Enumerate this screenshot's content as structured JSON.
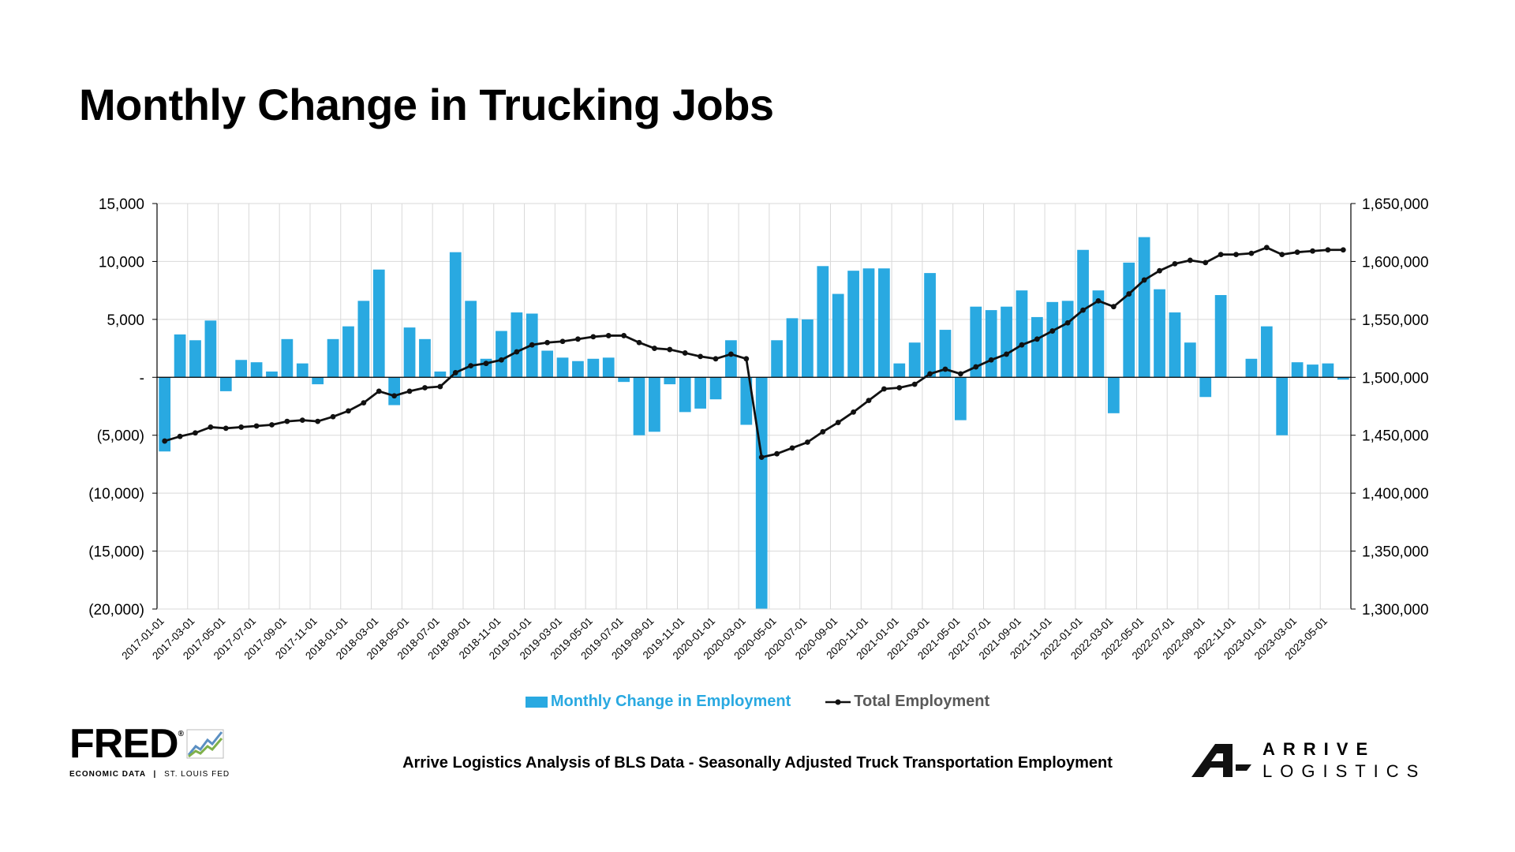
{
  "title": "Monthly Change in Trucking Jobs",
  "caption": "Arrive Logistics Analysis of BLS Data - Seasonally Adjusted Truck Transportation Employment",
  "colors": {
    "bar": "#29a9e1",
    "line": "#111111",
    "grid": "#d9d9d9",
    "axis": "#000000"
  },
  "logos": {
    "fred": {
      "word": "FRED",
      "mark": "®",
      "sub_left": "ECONOMIC DATA",
      "sub_sep": "|",
      "sub_right": "ST. LOUIS FED",
      "icon": "line-graph-icon"
    },
    "arrive": {
      "line1": "ARRIVE",
      "line2": "LOGISTICS",
      "icon": "arrive-a-logo-icon"
    }
  },
  "chart_data": {
    "type": "bar",
    "categories": [
      "2017-01-01",
      "2017-02-01",
      "2017-03-01",
      "2017-04-01",
      "2017-05-01",
      "2017-06-01",
      "2017-07-01",
      "2017-08-01",
      "2017-09-01",
      "2017-10-01",
      "2017-11-01",
      "2017-12-01",
      "2018-01-01",
      "2018-02-01",
      "2018-03-01",
      "2018-04-01",
      "2018-05-01",
      "2018-06-01",
      "2018-07-01",
      "2018-08-01",
      "2018-09-01",
      "2018-10-01",
      "2018-11-01",
      "2018-12-01",
      "2019-01-01",
      "2019-02-01",
      "2019-03-01",
      "2019-04-01",
      "2019-05-01",
      "2019-06-01",
      "2019-07-01",
      "2019-08-01",
      "2019-09-01",
      "2019-10-01",
      "2019-11-01",
      "2019-12-01",
      "2020-01-01",
      "2020-02-01",
      "2020-03-01",
      "2020-04-01",
      "2020-05-01",
      "2020-06-01",
      "2020-07-01",
      "2020-08-01",
      "2020-09-01",
      "2020-10-01",
      "2020-11-01",
      "2020-12-01",
      "2021-01-01",
      "2021-02-01",
      "2021-03-01",
      "2021-04-01",
      "2021-05-01",
      "2021-06-01",
      "2021-07-01",
      "2021-08-01",
      "2021-09-01",
      "2021-10-01",
      "2021-11-01",
      "2021-12-01",
      "2022-01-01",
      "2022-02-01",
      "2022-03-01",
      "2022-04-01",
      "2022-05-01",
      "2022-06-01",
      "2022-07-01",
      "2022-08-01",
      "2022-09-01",
      "2022-10-01",
      "2022-11-01",
      "2022-12-01",
      "2023-01-01",
      "2023-02-01",
      "2023-03-01",
      "2023-04-01",
      "2023-05-01",
      "2023-06-01"
    ],
    "x_tick_labels": [
      "2017-01-01",
      "2017-03-01",
      "2017-05-01",
      "2017-07-01",
      "2017-09-01",
      "2017-11-01",
      "2018-01-01",
      "2018-03-01",
      "2018-05-01",
      "2018-07-01",
      "2018-09-01",
      "2018-11-01",
      "2019-01-01",
      "2019-03-01",
      "2019-05-01",
      "2019-07-01",
      "2019-09-01",
      "2019-11-01",
      "2020-01-01",
      "2020-03-01",
      "2020-05-01",
      "2020-07-01",
      "2020-09-01",
      "2020-11-01",
      "2021-01-01",
      "2021-03-01",
      "2021-05-01",
      "2021-07-01",
      "2021-09-01",
      "2021-11-01",
      "2022-01-01",
      "2022-03-01",
      "2022-05-01",
      "2022-07-01",
      "2022-09-01",
      "2022-11-01",
      "2023-01-01",
      "2023-03-01",
      "2023-05-01"
    ],
    "series": [
      {
        "name": "Monthly Change in Employment",
        "type": "bar",
        "axis": "left",
        "values": [
          -6400,
          3700,
          3200,
          4900,
          -1200,
          1500,
          1300,
          500,
          3300,
          1200,
          -600,
          3300,
          4400,
          6600,
          9300,
          -2400,
          4300,
          3300,
          500,
          10800,
          6600,
          1600,
          4000,
          5600,
          5500,
          2300,
          1700,
          1400,
          1600,
          1700,
          -400,
          -5000,
          -4700,
          -600,
          -3000,
          -2700,
          -1900,
          3200,
          -4100,
          -22000,
          3200,
          5100,
          5000,
          9600,
          7200,
          9200,
          9400,
          9400,
          1200,
          3000,
          9000,
          4100,
          -3700,
          6100,
          5800,
          6100,
          7500,
          5200,
          6500,
          6600,
          11000,
          7500,
          -3100,
          9900,
          12100,
          7600,
          5600,
          3000,
          -1700,
          7100,
          0,
          1600,
          4400,
          -5000,
          1300,
          1100,
          1200,
          -200
        ]
      },
      {
        "name": "Total Employment",
        "type": "line",
        "axis": "right",
        "values": [
          1445000,
          1449000,
          1452000,
          1457000,
          1456000,
          1457000,
          1458000,
          1459000,
          1462000,
          1463000,
          1462000,
          1466000,
          1471000,
          1478000,
          1488000,
          1484000,
          1488000,
          1491000,
          1492000,
          1504000,
          1510000,
          1512000,
          1515000,
          1522000,
          1528000,
          1530000,
          1531000,
          1533000,
          1535000,
          1536000,
          1536000,
          1530000,
          1525000,
          1524000,
          1521000,
          1518000,
          1516000,
          1520000,
          1516000,
          1431000,
          1434000,
          1439000,
          1444000,
          1453000,
          1461000,
          1470000,
          1480000,
          1490000,
          1491000,
          1494000,
          1503000,
          1507000,
          1503000,
          1509000,
          1515000,
          1520000,
          1528000,
          1533000,
          1540000,
          1547000,
          1558000,
          1566000,
          1561000,
          1572000,
          1584000,
          1592000,
          1598000,
          1601000,
          1599000,
          1606000,
          1606000,
          1607000,
          1612000,
          1606000,
          1608000,
          1609000,
          1610000,
          1610000
        ]
      }
    ],
    "y_left": {
      "min": -20000,
      "max": 15000,
      "ticks": [
        15000,
        10000,
        5000,
        0,
        -5000,
        -10000,
        -15000,
        -20000
      ],
      "tick_labels": [
        "15,000",
        "10,000",
        "5,000",
        "-",
        "(5,000)",
        "(10,000)",
        "(15,000)",
        "(20,000)"
      ]
    },
    "y_right": {
      "min": 1300000,
      "max": 1650000,
      "ticks": [
        1650000,
        1600000,
        1550000,
        1500000,
        1450000,
        1400000,
        1350000,
        1300000
      ],
      "tick_labels": [
        "1,650,000",
        "1,600,000",
        "1,550,000",
        "1,500,000",
        "1,450,000",
        "1,400,000",
        "1,350,000",
        "1,300,000"
      ]
    },
    "legend": [
      {
        "label": "Monthly Change in Employment",
        "kind": "bar"
      },
      {
        "label": "Total Employment",
        "kind": "line-marker"
      }
    ],
    "legend_position": "bottom",
    "grid": true
  }
}
